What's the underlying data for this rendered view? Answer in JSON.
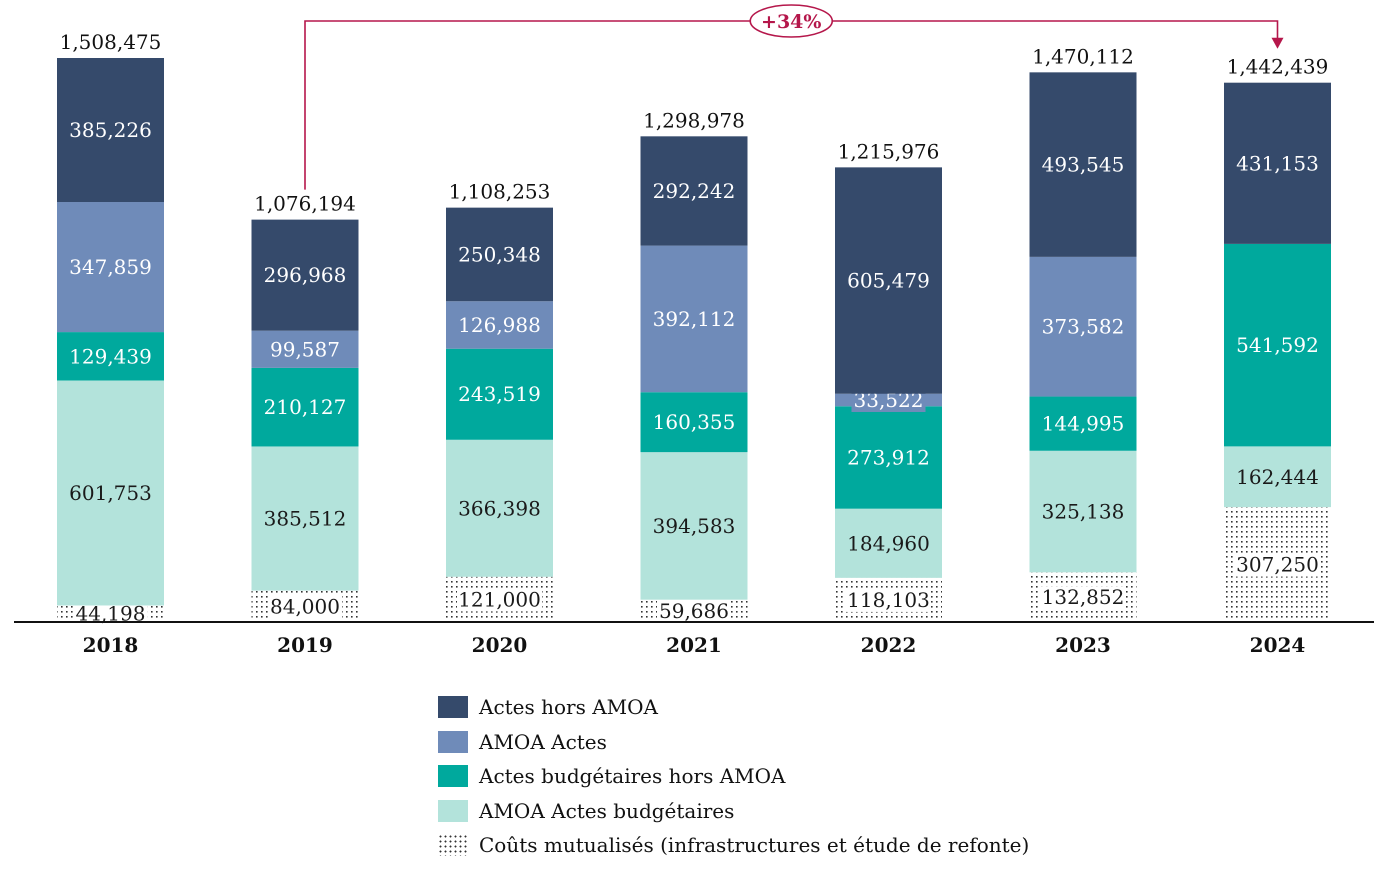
{
  "chart_data": {
    "type": "bar",
    "stacked": true,
    "categories": [
      "2018",
      "2019",
      "2020",
      "2021",
      "2022",
      "2023",
      "2024"
    ],
    "series": [
      {
        "name": "Coûts mutualisés (infrastructures et étude de refonte)",
        "color": "pattern-dots",
        "values": [
          44198,
          84000,
          121000,
          59686,
          118103,
          132852,
          307250
        ],
        "labels": [
          "44,198",
          "84,000",
          "121,000",
          "59,686",
          "118,103",
          "132,852",
          "307,250"
        ]
      },
      {
        "name": "AMOA Actes budgétaires",
        "color": "#b3e3db",
        "values": [
          601753,
          385512,
          366398,
          394583,
          184960,
          325138,
          162444
        ],
        "labels": [
          "601,753",
          "385,512",
          "366,398",
          "394,583",
          "184,960",
          "325,138",
          "162,444"
        ]
      },
      {
        "name": "Actes budgétaires hors AMOA",
        "color": "#00a99d",
        "values": [
          129439,
          210127,
          243519,
          160355,
          273912,
          144995,
          541592
        ],
        "labels": [
          "129,439",
          "210,127",
          "243,519",
          "160,355",
          "273,912",
          "144,995",
          "541,592"
        ]
      },
      {
        "name": "AMOA Actes",
        "color": "#6f8bb9",
        "values": [
          347859,
          99587,
          126988,
          392112,
          33522,
          373582,
          0
        ],
        "labels": [
          "347,859",
          "99,587",
          "126,988",
          "392,112",
          "33,522",
          "373,582",
          ""
        ]
      },
      {
        "name": "Actes hors AMOA",
        "color": "#354a6b",
        "values": [
          385226,
          296968,
          250348,
          292242,
          605479,
          493545,
          431153
        ],
        "labels": [
          "385,226",
          "296,968",
          "250,348",
          "292,242",
          "605,479",
          "493,545",
          "431,153"
        ]
      }
    ],
    "totals": [
      1508475,
      1076194,
      1108253,
      1298978,
      1215976,
      1470112,
      1442439
    ],
    "total_labels": [
      "1,508,475",
      "1,076,194",
      "1,108,253",
      "1,298,978",
      "1,215,976",
      "1,470,112",
      "1,442,439"
    ],
    "annotation": {
      "text": "+34%",
      "from": "2019",
      "to": "2024",
      "color": "#b5174b"
    },
    "legend_order": [
      "Actes hors AMOA",
      "AMOA Actes",
      "Actes budgétaires hors AMOA",
      "AMOA Actes budgétaires",
      "Coûts mutualisés (infrastructures et étude de refonte)"
    ],
    "ylim": [
      0,
      1508475
    ],
    "grid": false,
    "legend_position": "bottom"
  }
}
